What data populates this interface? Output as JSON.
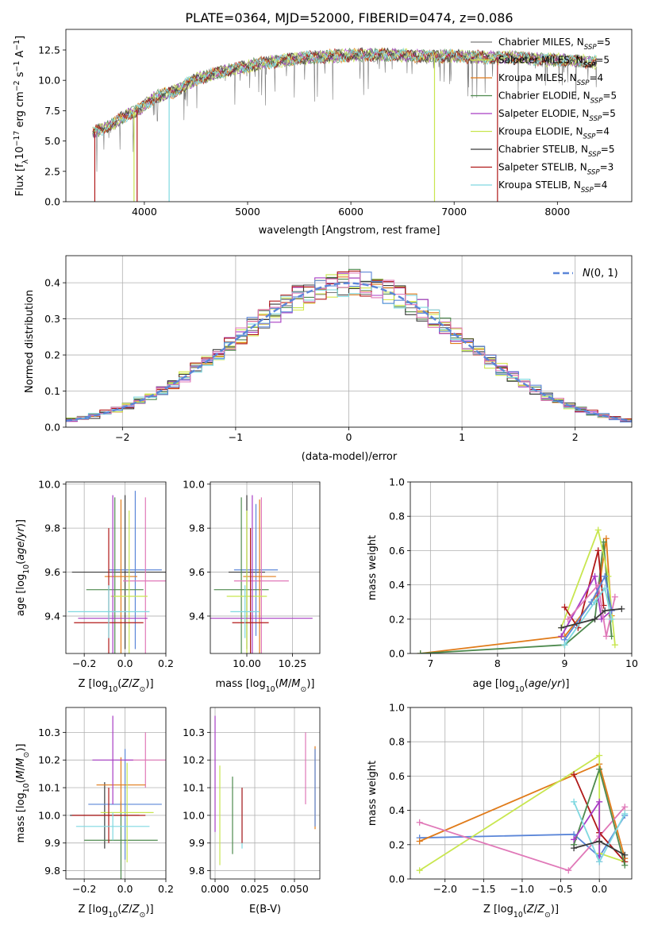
{
  "figure": {
    "title": "PLATE=0364, MJD=52000, FIBERID=0474, z=0.086"
  },
  "colors": {
    "c1": "#7a7a7a",
    "c2": "#d8e84a",
    "c3": "#e07b1a",
    "c4": "#4e8a4e",
    "c5": "#a83cc4",
    "c6": "#c8e64f",
    "c7": "#3a3a3a",
    "c8": "#b01818",
    "c9": "#7fd8e0",
    "blue": "#5b86d8",
    "pink": "#e078b8",
    "grid": "#b0b0b0"
  },
  "chart_data": [
    {
      "id": "spectrum",
      "type": "line",
      "title": "PLATE=0364, MJD=52000, FIBERID=0474, z=0.086",
      "xlabel": "wavelength [Angstrom, rest frame]",
      "ylabel": "Flux [fλ10⁻¹⁷ erg cm⁻² s⁻¹ A⁻¹]",
      "xlim": [
        3240,
        8720
      ],
      "ylim": [
        0,
        14.2
      ],
      "xticks": [
        4000,
        5000,
        6000,
        7000,
        8000
      ],
      "yticks": [
        0.0,
        2.5,
        5.0,
        7.5,
        10.0,
        12.5
      ],
      "ytick_labels": [
        "0.0",
        "2.5",
        "5.0",
        "7.5",
        "10.0",
        "12.5"
      ],
      "grid": false,
      "legend_position": "top-right",
      "legend": [
        "Chabrier MILES, NSSP=5",
        "Salpeter MILES, NSSP=5",
        "Kroupa MILES, NSSP=4",
        "Chabrier ELODIE, NSSP=5",
        "Salpeter ELODIE, NSSP=5",
        "Kroupa ELODIE, NSSP=4",
        "Chabrier STELIB, NSSP=5",
        "Salpeter STELIB, NSSP=3",
        "Kroupa STELIB, NSSP=4"
      ],
      "legend_main": [
        "Chabrier MILES, N",
        "Salpeter MILES, N",
        "Kroupa MILES, N",
        "Chabrier ELODIE, N",
        "Salpeter ELODIE, N",
        "Kroupa ELODIE, N",
        "Chabrier STELIB, N",
        "Salpeter STELIB, N",
        "Kroupa STELIB, N"
      ],
      "legend_sub": "SSP",
      "legend_val": [
        "=5",
        "=5",
        "=4",
        "=5",
        "=5",
        "=4",
        "=5",
        "=3",
        "=4"
      ],
      "series_colors": [
        "c1",
        "c2",
        "c3",
        "c4",
        "c5",
        "c6",
        "c7",
        "c8",
        "c9"
      ],
      "continuum": [
        [
          3500,
          5.7
        ],
        [
          3650,
          6.2
        ],
        [
          3800,
          7.0
        ],
        [
          3950,
          7.6
        ],
        [
          4100,
          8.6
        ],
        [
          4300,
          9.1
        ],
        [
          4500,
          10.1
        ],
        [
          4700,
          10.6
        ],
        [
          4900,
          11.0
        ],
        [
          5200,
          11.5
        ],
        [
          5500,
          11.8
        ],
        [
          5800,
          12.0
        ],
        [
          6100,
          12.1
        ],
        [
          6400,
          12.1
        ],
        [
          6700,
          12.0
        ],
        [
          7000,
          12.0
        ],
        [
          7300,
          11.9
        ],
        [
          7600,
          11.9
        ],
        [
          7900,
          11.7
        ],
        [
          8200,
          11.6
        ],
        [
          8350,
          11.5
        ]
      ],
      "drops": [
        {
          "x": 3520,
          "series": 7
        },
        {
          "x": 3900,
          "series": 5
        },
        {
          "x": 3930,
          "series": 7
        },
        {
          "x": 4240,
          "series": 8
        },
        {
          "x": 6810,
          "series": 5
        },
        {
          "x": 7420,
          "series": 7
        }
      ]
    },
    {
      "id": "residual-hist",
      "type": "histogram",
      "xlabel": "(data-model)/error",
      "ylabel": "Normed distribution",
      "xlim": [
        -2.5,
        2.5
      ],
      "ylim": [
        0,
        0.475
      ],
      "xticks": [
        -2,
        -1,
        0,
        1,
        2
      ],
      "xtick_labels": [
        "−2",
        "−1",
        "0",
        "1",
        "2"
      ],
      "yticks": [
        0.0,
        0.1,
        0.2,
        0.3,
        0.4
      ],
      "ytick_labels": [
        "0.0",
        "0.1",
        "0.2",
        "0.3",
        "0.4"
      ],
      "grid": true,
      "legend": [
        "N(0,1)"
      ],
      "legend_position": "top-right",
      "bin_width": 0.1
    },
    {
      "id": "age-vs-Z",
      "type": "errorbar",
      "xlabel": "Z [log10(Z/Z⊙)]",
      "ylabel": "age [log10(age/yr)]",
      "xlim": [
        -0.29,
        0.2
      ],
      "ylim": [
        9.23,
        10.01
      ],
      "xticks": [
        -0.2,
        0.0,
        0.2
      ],
      "xtick_labels": [
        "−0.2",
        "0.0",
        "0.2"
      ],
      "yticks": [
        9.4,
        9.6,
        9.8,
        10.0
      ],
      "ytick_labels": [
        "9.4",
        "9.6",
        "9.8",
        "10.0"
      ],
      "grid": true,
      "points": [
        {
          "x": 0.0,
          "y": 9.6,
          "xerr": 0.26,
          "yerr": 0.35,
          "c": "c7"
        },
        {
          "x": 0.05,
          "y": 9.61,
          "xerr": 0.13,
          "yerr": 0.36,
          "c": "blue"
        },
        {
          "x": -0.05,
          "y": 9.52,
          "xerr": 0.14,
          "yerr": 0.42,
          "c": "c4"
        },
        {
          "x": 0.1,
          "y": 9.56,
          "xerr": 0.11,
          "yerr": 0.38,
          "c": "pink"
        },
        {
          "x": -0.02,
          "y": 9.58,
          "xerr": 0.08,
          "yerr": 0.35,
          "c": "c3"
        },
        {
          "x": 0.02,
          "y": 9.49,
          "xerr": 0.09,
          "yerr": 0.39,
          "c": "c6"
        },
        {
          "x": -0.06,
          "y": 9.39,
          "xerr": 0.17,
          "yerr": 0.56,
          "c": "c5"
        },
        {
          "x": -0.08,
          "y": 9.37,
          "xerr": 0.17,
          "yerr": 0.43,
          "c": "c8"
        },
        {
          "x": -0.08,
          "y": 9.42,
          "xerr": 0.2,
          "yerr": 0.12,
          "c": "c9"
        }
      ]
    },
    {
      "id": "age-vs-mass",
      "type": "errorbar",
      "xlabel": "mass [log10(M/M⊙)]",
      "ylabel": "",
      "xlim": [
        9.8,
        10.4
      ],
      "ylim": [
        9.23,
        10.01
      ],
      "xticks": [
        10.0,
        10.25
      ],
      "xtick_labels": [
        "10.00",
        "10.25"
      ],
      "yticks": [
        9.4,
        9.6,
        9.8,
        10.0
      ],
      "ytick_labels": [
        "9.4",
        "9.6",
        "9.8",
        "10.0"
      ],
      "grid": true,
      "points": [
        {
          "x": 10.0,
          "y": 9.6,
          "xerr": 0.1,
          "yerr": 0.35,
          "c": "c7"
        },
        {
          "x": 10.05,
          "y": 9.61,
          "xerr": 0.12,
          "yerr": 0.3,
          "c": "blue"
        },
        {
          "x": 9.97,
          "y": 9.52,
          "xerr": 0.15,
          "yerr": 0.42,
          "c": "c4"
        },
        {
          "x": 10.08,
          "y": 9.56,
          "xerr": 0.15,
          "yerr": 0.38,
          "c": "pink"
        },
        {
          "x": 10.07,
          "y": 9.58,
          "xerr": 0.09,
          "yerr": 0.35,
          "c": "c3"
        },
        {
          "x": 10.0,
          "y": 9.49,
          "xerr": 0.11,
          "yerr": 0.39,
          "c": "c6"
        },
        {
          "x": 10.03,
          "y": 9.39,
          "xerr": 0.33,
          "yerr": 0.56,
          "c": "c5"
        },
        {
          "x": 10.02,
          "y": 9.37,
          "xerr": 0.1,
          "yerr": 0.43,
          "c": "c8"
        },
        {
          "x": 9.99,
          "y": 9.42,
          "xerr": 0.08,
          "yerr": 0.12,
          "c": "c9"
        }
      ]
    },
    {
      "id": "massweight-vs-age",
      "type": "line",
      "xlabel": "age [log10(age/yr)]",
      "ylabel": "mass weight",
      "xlim": [
        6.7,
        10
      ],
      "ylim": [
        0,
        1
      ],
      "xticks": [
        7,
        8,
        9,
        10
      ],
      "xtick_labels": [
        "7",
        "8",
        "9",
        "10"
      ],
      "yticks": [
        0.0,
        0.2,
        0.4,
        0.6,
        0.8,
        1.0
      ],
      "ytick_labels": [
        "0.0",
        "0.2",
        "0.4",
        "0.6",
        "0.8",
        "1.0"
      ],
      "grid": true,
      "series": [
        {
          "c": "c3",
          "points": [
            [
              6.85,
              0.0
            ],
            [
              9.0,
              0.1
            ],
            [
              9.5,
              0.35
            ],
            [
              9.62,
              0.67
            ],
            [
              9.7,
              0.22
            ]
          ]
        },
        {
          "c": "c4",
          "points": [
            [
              6.85,
              0.0
            ],
            [
              9.0,
              0.05
            ],
            [
              9.45,
              0.2
            ],
            [
              9.58,
              0.65
            ],
            [
              9.7,
              0.1
            ]
          ]
        },
        {
          "c": "c6",
          "points": [
            [
              8.95,
              0.15
            ],
            [
              9.5,
              0.72
            ],
            [
              9.65,
              0.45
            ],
            [
              9.75,
              0.05
            ]
          ]
        },
        {
          "c": "c8",
          "points": [
            [
              9.0,
              0.27
            ],
            [
              9.2,
              0.15
            ],
            [
              9.5,
              0.6
            ],
            [
              9.58,
              0.28
            ]
          ]
        },
        {
          "c": "c5",
          "points": [
            [
              8.95,
              0.1
            ],
            [
              9.45,
              0.45
            ],
            [
              9.55,
              0.2
            ],
            [
              9.7,
              0.25
            ]
          ]
        },
        {
          "c": "pink",
          "points": [
            [
              9.05,
              0.2
            ],
            [
              9.5,
              0.4
            ],
            [
              9.62,
              0.1
            ],
            [
              9.75,
              0.33
            ]
          ]
        },
        {
          "c": "blue",
          "points": [
            [
              9.0,
              0.08
            ],
            [
              9.4,
              0.3
            ],
            [
              9.6,
              0.45
            ],
            [
              9.7,
              0.25
            ]
          ]
        },
        {
          "c": "c9",
          "points": [
            [
              9.0,
              0.05
            ],
            [
              9.45,
              0.3
            ],
            [
              9.6,
              0.38
            ],
            [
              9.7,
              0.2
            ]
          ]
        },
        {
          "c": "c7",
          "points": [
            [
              8.95,
              0.15
            ],
            [
              9.45,
              0.2
            ],
            [
              9.6,
              0.25
            ],
            [
              9.85,
              0.26
            ]
          ]
        }
      ]
    },
    {
      "id": "mass-vs-Z",
      "type": "errorbar",
      "xlabel": "Z [log10(Z/Z⊙)]",
      "ylabel": "mass [log10(M/M⊙)]",
      "xlim": [
        -0.29,
        0.2
      ],
      "ylim": [
        9.77,
        10.39
      ],
      "xticks": [
        -0.2,
        0.0,
        0.2
      ],
      "xtick_labels": [
        "−0.2",
        "0.0",
        "0.2"
      ],
      "yticks": [
        9.8,
        9.9,
        10.0,
        10.1,
        10.2,
        10.3
      ],
      "ytick_labels": [
        "9.8",
        "9.9",
        "10.0",
        "10.1",
        "10.2",
        "10.3"
      ],
      "grid": true,
      "points": [
        {
          "x": -0.1,
          "y": 10.0,
          "xerr": 0.17,
          "yerr": 0.12,
          "c": "c7"
        },
        {
          "x": 0.0,
          "y": 10.04,
          "xerr": 0.18,
          "yerr": 0.2,
          "c": "blue"
        },
        {
          "x": -0.02,
          "y": 9.91,
          "xerr": 0.18,
          "yerr": 0.14,
          "c": "c4"
        },
        {
          "x": 0.1,
          "y": 10.2,
          "xerr": 0.1,
          "yerr": 0.1,
          "c": "pink"
        },
        {
          "x": -0.02,
          "y": 10.11,
          "xerr": 0.12,
          "yerr": 0.1,
          "c": "c3"
        },
        {
          "x": 0.01,
          "y": 10.01,
          "xerr": 0.13,
          "yerr": 0.18,
          "c": "c6"
        },
        {
          "x": -0.06,
          "y": 10.2,
          "xerr": 0.1,
          "yerr": 0.16,
          "c": "c5"
        },
        {
          "x": -0.08,
          "y": 10.0,
          "xerr": 0.18,
          "yerr": 0.1,
          "c": "c8"
        },
        {
          "x": -0.06,
          "y": 9.96,
          "xerr": 0.18,
          "yerr": 0.05,
          "c": "c9"
        }
      ]
    },
    {
      "id": "mass-vs-EBV",
      "type": "errorbar",
      "xlabel": "E(B-V)",
      "ylabel": "",
      "xlim": [
        -0.003,
        0.066
      ],
      "ylim": [
        9.77,
        10.39
      ],
      "xticks": [
        0.0,
        0.025,
        0.05
      ],
      "xtick_labels": [
        "0.000",
        "0.025",
        "0.050"
      ],
      "yticks": [
        9.8,
        9.9,
        10.0,
        10.1,
        10.2,
        10.3
      ],
      "ytick_labels": [
        "9.8",
        "9.9",
        "10.0",
        "10.1",
        "10.2",
        "10.3"
      ],
      "grid": true,
      "points": [
        {
          "x": 0.0,
          "y": 10.15,
          "xerr": 0,
          "yerr": 0.21,
          "c": "c5"
        },
        {
          "x": 0.003,
          "y": 10.0,
          "xerr": 0,
          "yerr": 0.18,
          "c": "c6"
        },
        {
          "x": 0.011,
          "y": 10.0,
          "xerr": 0,
          "yerr": 0.14,
          "c": "c4"
        },
        {
          "x": 0.017,
          "y": 9.99,
          "xerr": 0,
          "yerr": 0.11,
          "c": "c9"
        },
        {
          "x": 0.017,
          "y": 10.0,
          "xerr": 0,
          "yerr": 0.1,
          "c": "c8"
        },
        {
          "x": 0.057,
          "y": 10.17,
          "xerr": 0,
          "yerr": 0.13,
          "c": "pink"
        },
        {
          "x": 0.063,
          "y": 10.1,
          "xerr": 0,
          "yerr": 0.15,
          "c": "c3"
        },
        {
          "x": 0.063,
          "y": 10.1,
          "xerr": 0,
          "yerr": 0.14,
          "c": "blue"
        }
      ]
    },
    {
      "id": "massweight-vs-Z",
      "type": "line",
      "xlabel": "Z [log10(Z/Z⊙)]",
      "ylabel": "mass weight",
      "xlim": [
        -2.45,
        0.42
      ],
      "ylim": [
        0,
        1
      ],
      "xticks": [
        -2.0,
        -1.5,
        -1.0,
        -0.5,
        0.0
      ],
      "xtick_labels": [
        "−2.0",
        "−1.5",
        "−1.0",
        "−0.5",
        "0.0"
      ],
      "yticks": [
        0.0,
        0.2,
        0.4,
        0.6,
        0.8,
        1.0
      ],
      "ytick_labels": [
        "0.0",
        "0.2",
        "0.4",
        "0.6",
        "0.8",
        "1.0"
      ],
      "grid": true,
      "series": [
        {
          "c": "blue",
          "points": [
            [
              -2.33,
              0.24
            ],
            [
              -0.33,
              0.26
            ],
            [
              0.0,
              0.13
            ],
            [
              0.33,
              0.37
            ]
          ]
        },
        {
          "c": "c3",
          "points": [
            [
              -2.33,
              0.22
            ],
            [
              0.0,
              0.67
            ],
            [
              0.33,
              0.12
            ]
          ]
        },
        {
          "c": "c6",
          "points": [
            [
              -2.33,
              0.05
            ],
            [
              0.0,
              0.72
            ],
            [
              0.0,
              0.15
            ],
            [
              0.33,
              0.1
            ]
          ]
        },
        {
          "c": "pink",
          "points": [
            [
              -2.33,
              0.33
            ],
            [
              -0.4,
              0.05
            ],
            [
              0.0,
              0.25
            ],
            [
              0.33,
              0.42
            ]
          ]
        },
        {
          "c": "c8",
          "points": [
            [
              -0.33,
              0.61
            ],
            [
              0.0,
              0.27
            ],
            [
              0.33,
              0.1
            ]
          ]
        },
        {
          "c": "c4",
          "points": [
            [
              -0.33,
              0.2
            ],
            [
              0.0,
              0.64
            ],
            [
              0.33,
              0.08
            ]
          ]
        },
        {
          "c": "c5",
          "points": [
            [
              -0.33,
              0.23
            ],
            [
              0.0,
              0.45
            ],
            [
              0.0,
              0.1
            ]
          ]
        },
        {
          "c": "c9",
          "points": [
            [
              -0.33,
              0.45
            ],
            [
              0.0,
              0.1
            ],
            [
              0.33,
              0.38
            ]
          ]
        },
        {
          "c": "c7",
          "points": [
            [
              -0.33,
              0.18
            ],
            [
              0.0,
              0.22
            ],
            [
              0.33,
              0.14
            ]
          ]
        }
      ]
    }
  ]
}
